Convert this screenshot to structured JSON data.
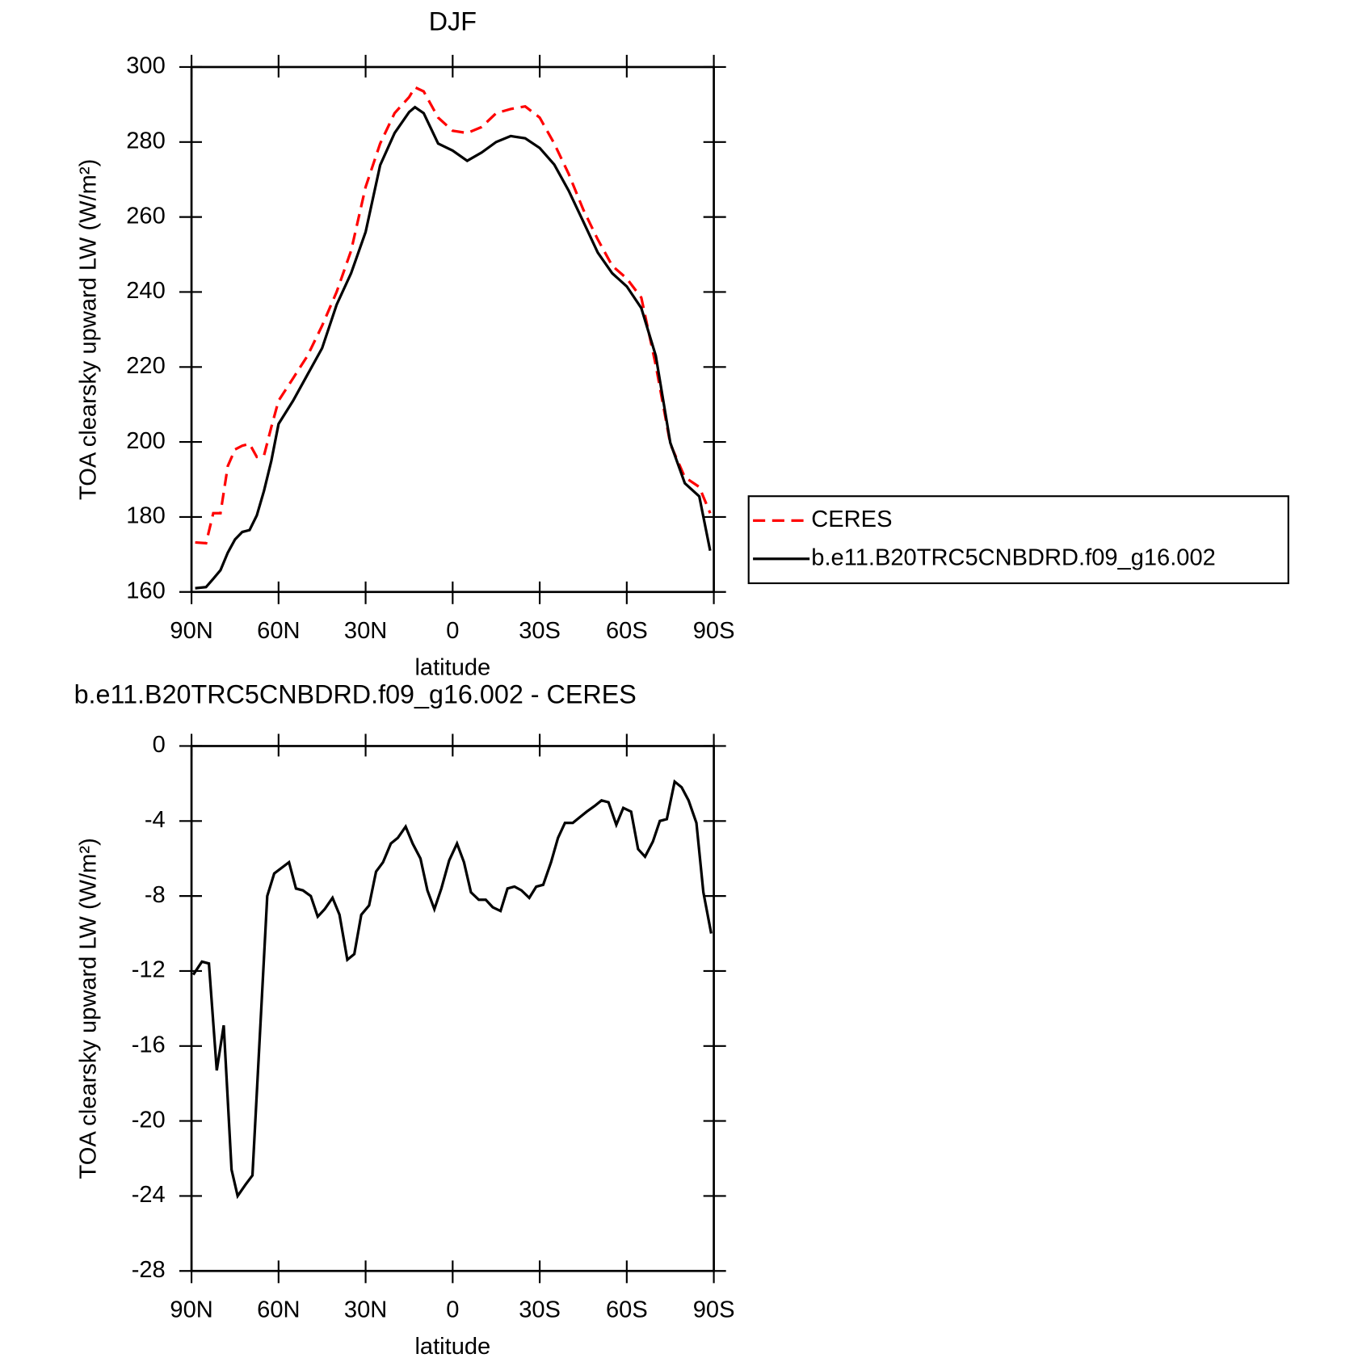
{
  "chart_data": [
    {
      "type": "line",
      "title": "DJF",
      "xlabel": "latitude",
      "ylabel": "TOA clearsky upward LW (W/m²)",
      "x": [
        88.75,
        85,
        82.5,
        80,
        77.5,
        75,
        72.5,
        70,
        67.5,
        65,
        62.5,
        60,
        55,
        50,
        45,
        40,
        35,
        30,
        25,
        20,
        15,
        13,
        10,
        5,
        0,
        -5,
        -10,
        -15,
        -20,
        -25,
        -30,
        -35,
        -40,
        -45,
        -50,
        -55,
        -60,
        -65,
        -70,
        -75,
        -80,
        -85,
        -88.75
      ],
      "series": [
        {
          "name": "CERES",
          "color": "#ff0000",
          "dash": "dashed",
          "values": [
            173.2,
            173,
            181,
            181,
            193.6,
            198,
            199,
            199.5,
            196,
            196.4,
            204,
            211,
            217,
            223,
            231,
            240,
            251,
            268,
            279.6,
            287.7,
            292,
            294.6,
            293.5,
            286.5,
            283,
            282.4,
            284,
            287.7,
            288.8,
            289.5,
            286.5,
            279.6,
            271.5,
            262,
            254,
            247,
            243.6,
            238.5,
            220.5,
            199.5,
            190.6,
            188,
            181
          ]
        },
        {
          "name": "b.e11.B20TRC5CNBDRD.f09_g16.002",
          "color": "#000000",
          "dash": "solid",
          "values": [
            161,
            161.3,
            163.5,
            165.8,
            170.5,
            174,
            176,
            176.5,
            180.4,
            187,
            195,
            204.8,
            211,
            218,
            225,
            236.6,
            245,
            256,
            273.8,
            282.4,
            288,
            289.3,
            287.7,
            279.6,
            277.7,
            275,
            277.2,
            280,
            281.6,
            281,
            278.4,
            274,
            267,
            258.8,
            250.5,
            245,
            241.5,
            235.7,
            223,
            199.8,
            189,
            185.5,
            171
          ]
        }
      ],
      "xlim": [
        90,
        -90
      ],
      "xticks": [
        {
          "value": 90,
          "label": "90N"
        },
        {
          "value": 60,
          "label": "60N"
        },
        {
          "value": 30,
          "label": "30N"
        },
        0,
        {
          "value": -30,
          "label": "30S"
        },
        {
          "value": -60,
          "label": "60S"
        },
        {
          "value": -90,
          "label": "90S"
        }
      ],
      "ylim": [
        160,
        300
      ],
      "yticks": [
        160,
        180,
        200,
        220,
        240,
        260,
        280,
        300
      ],
      "legend": "outside right"
    },
    {
      "type": "line",
      "title": "b.e11.B20TRC5CNBDRD.f09_g16.002 - CERES",
      "xlabel": "latitude",
      "ylabel": "TOA clearsky upward LW (W/m²)",
      "x": [
        89.4,
        86.4,
        84,
        81.3,
        78.9,
        76.2,
        74.1,
        71.4,
        69,
        63.9,
        61.5,
        56.4,
        54,
        51.6,
        48.9,
        46.5,
        44.1,
        41.4,
        39,
        36.3,
        33.9,
        31.5,
        28.8,
        26.4,
        24,
        21.3,
        18.9,
        16.2,
        13.8,
        11.1,
        8.7,
        6.3,
        3.9,
        1.2,
        -1.5,
        -3.9,
        -6.3,
        -9,
        -11.4,
        -13.8,
        -16.5,
        -18.9,
        -21.3,
        -23.7,
        -26.4,
        -28.8,
        -31.2,
        -33.9,
        -36.3,
        -38.7,
        -41.4,
        -43.8,
        -46.2,
        -48.9,
        -51.3,
        -53.7,
        -56.4,
        -58.8,
        -61.5,
        -63.9,
        -66.3,
        -69,
        -71.4,
        -73.8,
        -76.5,
        -78.9,
        -81.3,
        -84,
        -86.4,
        -89.1
      ],
      "values": [
        -12.2,
        -11.5,
        -11.6,
        -17.3,
        -14.9,
        -22.6,
        -24.0,
        -23.4,
        -22.9,
        -8.0,
        -6.8,
        -6.2,
        -7.6,
        -7.7,
        -8.0,
        -9.1,
        -8.7,
        -8.1,
        -9.0,
        -11.4,
        -11.1,
        -9.0,
        -8.5,
        -6.7,
        -6.2,
        -5.2,
        -4.9,
        -4.3,
        -5.2,
        -6.0,
        -7.7,
        -8.7,
        -7.6,
        -6.1,
        -5.2,
        -6.2,
        -7.8,
        -8.2,
        -8.2,
        -8.6,
        -8.8,
        -7.6,
        -7.5,
        -7.7,
        -8.1,
        -7.5,
        -7.4,
        -6.2,
        -4.9,
        -4.1,
        -4.1,
        -3.8,
        -3.5,
        -3.2,
        -2.9,
        -3.0,
        -4.2,
        -3.3,
        -3.5,
        -5.5,
        -5.9,
        -5.1,
        -4.0,
        -3.9,
        -1.9,
        -2.2,
        -2.9,
        -4.1,
        -7.8,
        -10.0
      ],
      "color": "#000000",
      "xlim": [
        90,
        -90
      ],
      "xticks": [
        {
          "value": 90,
          "label": "90N"
        },
        {
          "value": 60,
          "label": "60N"
        },
        {
          "value": 30,
          "label": "30N"
        },
        0,
        {
          "value": -30,
          "label": "30S"
        },
        {
          "value": -60,
          "label": "60S"
        },
        {
          "value": -90,
          "label": "90S"
        }
      ],
      "ylim": [
        -28,
        0
      ],
      "yticks": [
        -28,
        -24,
        -20,
        -16,
        -12,
        -8,
        -4,
        0
      ]
    }
  ]
}
